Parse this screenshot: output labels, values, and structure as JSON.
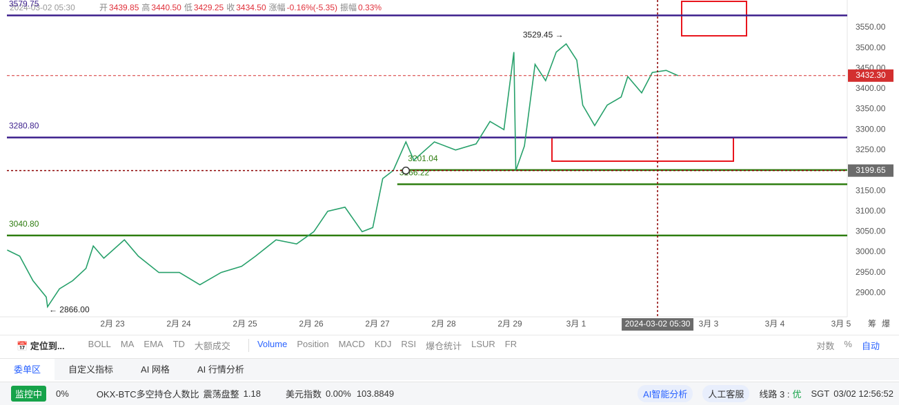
{
  "header": {
    "date": "2024-03-02 05:30",
    "open_label": "开",
    "open": "3439.85",
    "high_label": "高",
    "high": "3440.50",
    "low_label": "低",
    "low": "3429.25",
    "close_label": "收",
    "close": "3434.50",
    "change_label": "涨幅",
    "change": "-0.16%(-5.35)",
    "amplitude_label": "振幅",
    "amplitude": "0.33%"
  },
  "chart_data": {
    "type": "line",
    "x": [
      -1.59,
      -1.4,
      -1.2,
      -1.0,
      -0.98,
      -0.8,
      -0.6,
      -0.4,
      -0.29,
      -0.13,
      0.18,
      0.39,
      0.7,
      1.01,
      1.32,
      1.64,
      1.95,
      2.16,
      2.47,
      2.78,
      3.04,
      3.25,
      3.51,
      3.77,
      3.93,
      4.08,
      4.24,
      4.43,
      4.55,
      4.86,
      5.18,
      5.49,
      5.7,
      5.91,
      6.06,
      6.09,
      6.22,
      6.38,
      6.54,
      6.7,
      6.85,
      7.01,
      7.1,
      7.28,
      7.47,
      7.68,
      7.78,
      7.99,
      8.15,
      8.36,
      8.54
    ],
    "series": [
      {
        "color": "#26a06a",
        "values": [
          3005,
          2990,
          2930,
          2890,
          2866,
          2910,
          2930,
          2960,
          3015,
          2985,
          3030,
          2990,
          2950,
          2950,
          2920,
          2950,
          2965,
          2990,
          3030,
          3020,
          3050,
          3100,
          3110,
          3050,
          3060,
          3180,
          3200,
          3270,
          3225,
          3270,
          3250,
          3265,
          3320,
          3300,
          3490,
          3200,
          3260,
          3460,
          3420,
          3490,
          3510,
          3470,
          3360,
          3310,
          3360,
          3380,
          3430,
          3390,
          3440,
          3445,
          3432
        ]
      }
    ],
    "xlim": [
      -1.594,
      11.094
    ],
    "ylim": [
      2841.4,
      3617.5
    ],
    "xticks": [
      {
        "value": 0,
        "label": "2月 23"
      },
      {
        "value": 1,
        "label": "2月 24"
      },
      {
        "value": 2,
        "label": "2月 25"
      },
      {
        "value": 3,
        "label": "2月 26"
      },
      {
        "value": 4,
        "label": "2月 27"
      },
      {
        "value": 5,
        "label": "2月 28"
      },
      {
        "value": 6,
        "label": "2月 29"
      },
      {
        "value": 7,
        "label": "3月 1"
      },
      {
        "value": 9,
        "label": "3月 3"
      },
      {
        "value": 10,
        "label": "3月 4"
      },
      {
        "value": 11,
        "label": "3月 5"
      }
    ],
    "yticks": [
      {
        "value": 2900,
        "label": "2900.00"
      },
      {
        "value": 2950,
        "label": "2950.00"
      },
      {
        "value": 3000,
        "label": "3000.00"
      },
      {
        "value": 3050,
        "label": "3050.00"
      },
      {
        "value": 3100,
        "label": "3100.00"
      },
      {
        "value": 3150,
        "label": "3150.00"
      },
      {
        "value": 3200,
        "label": "3200.00"
      },
      {
        "value": 3250,
        "label": "3250.00"
      },
      {
        "value": 3300,
        "label": "3300.00"
      },
      {
        "value": 3350,
        "label": "3350.00"
      },
      {
        "value": 3400,
        "label": "3400.00"
      },
      {
        "value": 3450,
        "label": "3450.00"
      },
      {
        "value": 3500,
        "label": "3500.00"
      },
      {
        "value": 3550,
        "label": "3550.00"
      }
    ],
    "levels": [
      {
        "value": 3579.75,
        "label": "3579.75",
        "color": "#3b1e8c"
      },
      {
        "value": 3280.8,
        "label": "3280.80",
        "color": "#3b1e8c"
      },
      {
        "value": 3201.04,
        "label": "3201.04",
        "color": "#2e7d0f",
        "from": 4.43
      },
      {
        "value": 3166.22,
        "label": "3166.22",
        "color": "#2e7d0f",
        "from": 4.3
      },
      {
        "value": 3040.8,
        "label": "3040.80",
        "color": "#2e7d0f"
      }
    ],
    "current_price": {
      "value": 3432.3,
      "label": "3432.30"
    },
    "crosshair": {
      "x": 8.23,
      "y": 3199.65
    },
    "annotations": [
      {
        "text": "3529.45 →",
        "x": 6.85,
        "value": 3529.45,
        "anchor": "end"
      },
      {
        "text": "← 2866.00",
        "x": -0.98,
        "value": 2866,
        "anchor": "start"
      }
    ]
  },
  "toolbar": {
    "locate": "定位到...",
    "indicators": [
      "BOLL",
      "MA",
      "EMA",
      "TD",
      "大额成交"
    ],
    "sub_indicators": [
      "Volume",
      "Position",
      "MACD",
      "KDJ",
      "RSI",
      "爆仓统计",
      "LSUR",
      "FR"
    ],
    "right": [
      "对数",
      "%",
      "自动"
    ],
    "side": [
      "筹",
      "爆"
    ]
  },
  "tabs": [
    "委单区",
    "自定义指标",
    "AI 网格",
    "AI 行情分析"
  ],
  "status": {
    "monitor": "监控中",
    "percent": "0%",
    "ratio_name": "OKX-BTC多空持仓人数比",
    "ratio_state": "震荡盘整",
    "ratio_value": "1.18",
    "usd_name": "美元指数",
    "usd_change": "0.00%",
    "usd_value": "103.8849",
    "ai": "AI智能分析",
    "service": "人工客服",
    "line": "线路 3 :",
    "line_quality": "优",
    "tz": "SGT",
    "time": "03/02 12:56:52"
  }
}
